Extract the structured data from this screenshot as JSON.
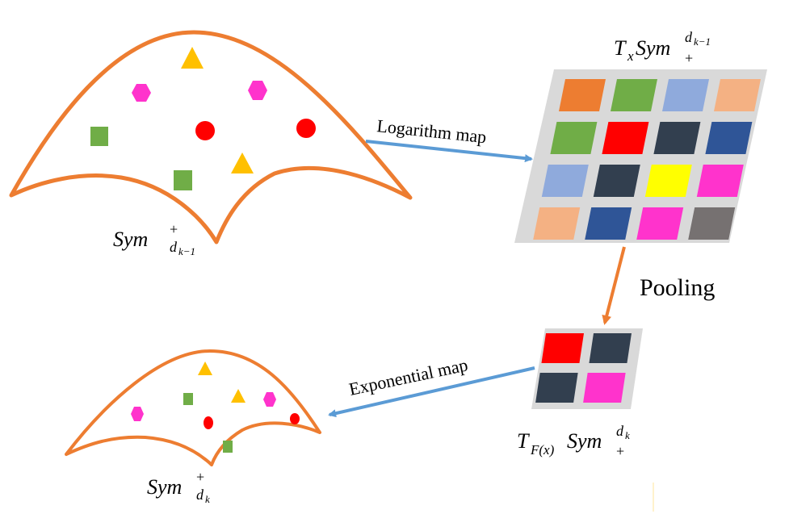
{
  "labels": {
    "top_manifold": "Sym",
    "top_manifold_sup": "+",
    "top_manifold_sub": "d",
    "top_manifold_subsub": "k−1",
    "tangent_top_T": "T",
    "tangent_top_x": "x",
    "tangent_top_sym": "Sym",
    "tangent_top_sup": "d",
    "tangent_top_supsub": "k−1",
    "tangent_top_plus": "+",
    "log_map": "Logarithm map",
    "pooling": "Pooling",
    "exp_map": "Exponential map",
    "tangent_bottom_T": "T",
    "tangent_bottom_Fx": "F(x)",
    "tangent_bottom_sym": "Sym",
    "tangent_bottom_sup": "d",
    "tangent_bottom_supsub": "k",
    "tangent_bottom_plus": "+",
    "bottom_manifold": "Sym",
    "bottom_manifold_sup": "+",
    "bottom_manifold_sub": "d",
    "bottom_manifold_subsub": "k"
  },
  "colors": {
    "manifold_stroke": "#ED7D31",
    "log_arrow": "#5B9BD5",
    "exp_arrow": "#5B9BD5",
    "pool_arrow": "#ED7D31",
    "grid_bg": "#D9D9D9",
    "triangle": "#FFC000",
    "hexagon": "#FF33CC",
    "circle": "#FF0000",
    "square": "#70AD47"
  },
  "top_grid_colors": [
    [
      "#ED7D31",
      "#70AD47",
      "#8FAADC",
      "#F4B183"
    ],
    [
      "#70AD47",
      "#FF0000",
      "#323F4F",
      "#2F5597"
    ],
    [
      "#8FAADC",
      "#323F4F",
      "#FFFF00",
      "#FF33CC"
    ],
    [
      "#F4B183",
      "#2F5597",
      "#FF33CC",
      "#767171"
    ]
  ],
  "bottom_grid_colors": [
    [
      "#FF0000",
      "#323F4F"
    ],
    [
      "#323F4F",
      "#FF33CC"
    ]
  ]
}
